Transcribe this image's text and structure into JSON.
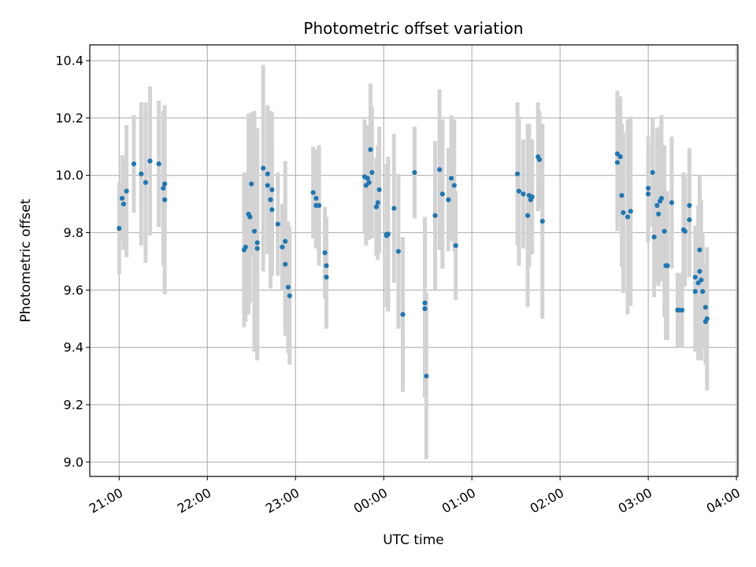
{
  "chart_data": {
    "type": "scatter",
    "title": "Photometric offset variation",
    "xlabel": "UTC time",
    "ylabel": "Photometric offset",
    "x_ticks": [
      "21:00",
      "22:00",
      "23:00",
      "00:00",
      "01:00",
      "02:00",
      "03:00",
      "04:00"
    ],
    "y_ticks": [
      "9.0",
      "9.2",
      "9.4",
      "9.6",
      "9.8",
      "10.0",
      "10.2",
      "10.4"
    ],
    "xlim": [
      "20:40",
      "04:01"
    ],
    "ylim": [
      8.95,
      10.455
    ],
    "grid": true,
    "error_bar_color": "#d3d3d3",
    "marker_color": "#1f77b4",
    "series": [
      {
        "points": [
          {
            "x": "21:00",
            "y": 9.815,
            "err": 0.16
          },
          {
            "x": "21:02",
            "y": 9.92,
            "err": 0.15
          },
          {
            "x": "21:03",
            "y": 9.9,
            "err": 0.16
          },
          {
            "x": "21:05",
            "y": 9.945,
            "err": 0.23
          },
          {
            "x": "21:10",
            "y": 10.04,
            "err": 0.17
          },
          {
            "x": "21:15",
            "y": 10.005,
            "err": 0.25
          },
          {
            "x": "21:18",
            "y": 9.975,
            "err": 0.28
          },
          {
            "x": "21:21",
            "y": 10.05,
            "err": 0.26
          },
          {
            "x": "21:27",
            "y": 10.04,
            "err": 0.22
          },
          {
            "x": "21:30",
            "y": 9.955,
            "err": 0.27
          },
          {
            "x": "21:31",
            "y": 9.97,
            "err": 0.22
          },
          {
            "x": "21:31",
            "y": 9.915,
            "err": 0.33
          },
          {
            "x": "22:25",
            "y": 9.74,
            "err": 0.27
          },
          {
            "x": "22:26",
            "y": 9.75,
            "err": 0.26
          },
          {
            "x": "22:28",
            "y": 9.865,
            "err": 0.35
          },
          {
            "x": "22:29",
            "y": 9.855,
            "err": 0.3
          },
          {
            "x": "22:30",
            "y": 9.97,
            "err": 0.25
          },
          {
            "x": "22:32",
            "y": 9.805,
            "err": 0.42
          },
          {
            "x": "22:34",
            "y": 9.765,
            "err": 0.4
          },
          {
            "x": "22:34",
            "y": 9.745,
            "err": 0.39
          },
          {
            "x": "22:38",
            "y": 10.025,
            "err": 0.36
          },
          {
            "x": "22:41",
            "y": 10.005,
            "err": 0.24
          },
          {
            "x": "22:41",
            "y": 9.965,
            "err": 0.24
          },
          {
            "x": "22:43",
            "y": 9.915,
            "err": 0.31
          },
          {
            "x": "22:44",
            "y": 9.95,
            "err": 0.27
          },
          {
            "x": "22:44",
            "y": 9.88,
            "err": 0.23
          },
          {
            "x": "22:48",
            "y": 9.83,
            "err": 0.18
          },
          {
            "x": "22:51",
            "y": 9.75,
            "err": 0.15
          },
          {
            "x": "22:53",
            "y": 9.77,
            "err": 0.28
          },
          {
            "x": "22:53",
            "y": 9.69,
            "err": 0.25
          },
          {
            "x": "22:55",
            "y": 9.61,
            "err": 0.23
          },
          {
            "x": "22:56",
            "y": 9.58,
            "err": 0.24
          },
          {
            "x": "23:12",
            "y": 9.94,
            "err": 0.16
          },
          {
            "x": "23:14",
            "y": 9.895,
            "err": 0.15
          },
          {
            "x": "23:14",
            "y": 9.92,
            "err": 0.17
          },
          {
            "x": "23:16",
            "y": 9.895,
            "err": 0.21
          },
          {
            "x": "23:20",
            "y": 9.73,
            "err": 0.16
          },
          {
            "x": "23:21",
            "y": 9.685,
            "err": 0.17
          },
          {
            "x": "23:21",
            "y": 9.645,
            "err": 0.18
          },
          {
            "x": "23:47",
            "y": 9.995,
            "err": 0.2
          },
          {
            "x": "23:48",
            "y": 9.965,
            "err": 0.21
          },
          {
            "x": "23:49",
            "y": 9.99,
            "err": 0.18
          },
          {
            "x": "23:50",
            "y": 9.975,
            "err": 0.2
          },
          {
            "x": "23:51",
            "y": 10.09,
            "err": 0.23
          },
          {
            "x": "23:52",
            "y": 10.01,
            "err": 0.23
          },
          {
            "x": "23:55",
            "y": 9.89,
            "err": 0.17
          },
          {
            "x": "23:56",
            "y": 9.905,
            "err": 0.2
          },
          {
            "x": "23:57",
            "y": 9.95,
            "err": 0.22
          },
          {
            "x": "00:02",
            "y": 9.795,
            "err": 0.22
          },
          {
            "x": "00:02",
            "y": 9.79,
            "err": 0.25
          },
          {
            "x": "00:03",
            "y": 9.795,
            "err": 0.27
          },
          {
            "x": "00:07",
            "y": 9.885,
            "err": 0.26
          },
          {
            "x": "00:10",
            "y": 9.735,
            "err": 0.27
          },
          {
            "x": "00:13",
            "y": 9.515,
            "err": 0.27
          },
          {
            "x": "00:21",
            "y": 10.01,
            "err": 0.16
          },
          {
            "x": "00:28",
            "y": 9.555,
            "err": 0.3
          },
          {
            "x": "00:28",
            "y": 9.535,
            "err": 0.31
          },
          {
            "x": "00:29",
            "y": 9.3,
            "err": 0.29
          },
          {
            "x": "00:35",
            "y": 9.86,
            "err": 0.26
          },
          {
            "x": "00:38",
            "y": 10.02,
            "err": 0.28
          },
          {
            "x": "00:40",
            "y": 9.935,
            "err": 0.26
          },
          {
            "x": "00:44",
            "y": 9.915,
            "err": 0.18
          },
          {
            "x": "00:46",
            "y": 9.99,
            "err": 0.22
          },
          {
            "x": "00:48",
            "y": 9.965,
            "err": 0.23
          },
          {
            "x": "00:49",
            "y": 9.755,
            "err": 0.19
          },
          {
            "x": "01:31",
            "y": 10.005,
            "err": 0.25
          },
          {
            "x": "01:32",
            "y": 9.945,
            "err": 0.26
          },
          {
            "x": "01:35",
            "y": 9.935,
            "err": 0.19
          },
          {
            "x": "01:38",
            "y": 9.86,
            "err": 0.32
          },
          {
            "x": "01:39",
            "y": 9.93,
            "err": 0.25
          },
          {
            "x": "01:40",
            "y": 9.915,
            "err": 0.19
          },
          {
            "x": "01:41",
            "y": 9.925,
            "err": 0.2
          },
          {
            "x": "01:45",
            "y": 10.065,
            "err": 0.19
          },
          {
            "x": "01:46",
            "y": 10.055,
            "err": 0.17
          },
          {
            "x": "01:48",
            "y": 9.84,
            "err": 0.34
          },
          {
            "x": "02:39",
            "y": 10.075,
            "err": 0.22
          },
          {
            "x": "02:39",
            "y": 10.045,
            "err": 0.24
          },
          {
            "x": "02:41",
            "y": 10.065,
            "err": 0.21
          },
          {
            "x": "02:42",
            "y": 9.93,
            "err": 0.25
          },
          {
            "x": "02:43",
            "y": 9.87,
            "err": 0.28
          },
          {
            "x": "02:46",
            "y": 9.855,
            "err": 0.34
          },
          {
            "x": "02:48",
            "y": 9.875,
            "err": 0.33
          },
          {
            "x": "03:00",
            "y": 9.955,
            "err": 0.18
          },
          {
            "x": "03:00",
            "y": 9.935,
            "err": 0.17
          },
          {
            "x": "03:03",
            "y": 10.01,
            "err": 0.19
          },
          {
            "x": "03:04",
            "y": 9.785,
            "err": 0.21
          },
          {
            "x": "03:06",
            "y": 9.895,
            "err": 0.27
          },
          {
            "x": "03:07",
            "y": 9.865,
            "err": 0.25
          },
          {
            "x": "03:08",
            "y": 9.91,
            "err": 0.26
          },
          {
            "x": "03:09",
            "y": 9.92,
            "err": 0.29
          },
          {
            "x": "03:11",
            "y": 9.805,
            "err": 0.3
          },
          {
            "x": "03:12",
            "y": 9.685,
            "err": 0.26
          },
          {
            "x": "03:13",
            "y": 9.685,
            "err": 0.26
          },
          {
            "x": "03:16",
            "y": 9.905,
            "err": 0.23
          },
          {
            "x": "03:20",
            "y": 9.53,
            "err": 0.13
          },
          {
            "x": "03:21",
            "y": 9.53,
            "err": 0.13
          },
          {
            "x": "03:23",
            "y": 9.53,
            "err": 0.13
          },
          {
            "x": "03:24",
            "y": 9.81,
            "err": 0.2
          },
          {
            "x": "03:25",
            "y": 9.805,
            "err": 0.19
          },
          {
            "x": "03:28",
            "y": 9.895,
            "err": 0.2
          },
          {
            "x": "03:28",
            "y": 9.845,
            "err": 0.2
          },
          {
            "x": "03:32",
            "y": 9.645,
            "err": 0.18
          },
          {
            "x": "03:32",
            "y": 9.595,
            "err": 0.21
          },
          {
            "x": "03:34",
            "y": 9.625,
            "err": 0.27
          },
          {
            "x": "03:35",
            "y": 9.74,
            "err": 0.26
          },
          {
            "x": "03:35",
            "y": 9.665,
            "err": 0.22
          },
          {
            "x": "03:36",
            "y": 9.635,
            "err": 0.28
          },
          {
            "x": "03:37",
            "y": 9.595,
            "err": 0.2
          },
          {
            "x": "03:39",
            "y": 9.49,
            "err": 0.15
          },
          {
            "x": "03:39",
            "y": 9.54,
            "err": 0.15
          },
          {
            "x": "03:40",
            "y": 9.5,
            "err": 0.25
          }
        ]
      }
    ]
  }
}
